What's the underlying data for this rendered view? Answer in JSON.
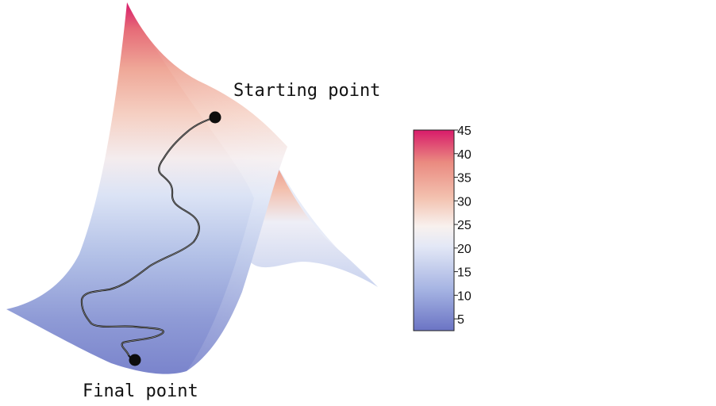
{
  "annotations": {
    "start_label": "Starting point",
    "final_label": "Final point"
  },
  "colorbar": {
    "min": 2.5,
    "max": 45,
    "ticks": [
      "5",
      "10",
      "15",
      "20",
      "25",
      "30",
      "35",
      "40",
      "45"
    ],
    "tick_values": [
      5,
      10,
      15,
      20,
      25,
      30,
      35,
      40,
      45
    ],
    "colormap": [
      "#6b74c4",
      "#a4b2e2",
      "#e3e8f6",
      "#f8f1ee",
      "#f3c2b0",
      "#ea8a80",
      "#d81b6a"
    ]
  },
  "colors": {
    "path": "#1a1a1a",
    "markers": "#0d0d0d"
  }
}
